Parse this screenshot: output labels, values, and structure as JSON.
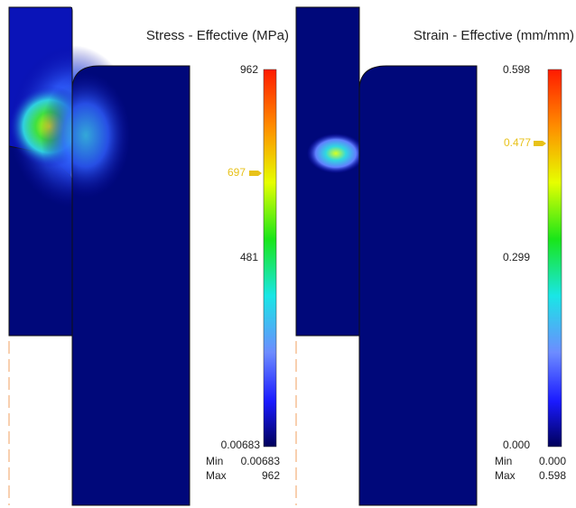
{
  "panels": [
    {
      "title": "Stress - Effective (MPa)",
      "legend": {
        "top": "962",
        "marker": "697",
        "middle": "481",
        "bottom": "0.00683"
      },
      "min_label": "Min",
      "min_value": "0.00683",
      "max_label": "Max",
      "max_value": "962"
    },
    {
      "title": "Strain - Effective (mm/mm)",
      "legend": {
        "top": "0.598",
        "marker": "0.477",
        "middle": "0.299",
        "bottom": "0.000"
      },
      "min_label": "Min",
      "min_value": "0.000",
      "max_label": "Max",
      "max_value": "0.598"
    }
  ]
}
